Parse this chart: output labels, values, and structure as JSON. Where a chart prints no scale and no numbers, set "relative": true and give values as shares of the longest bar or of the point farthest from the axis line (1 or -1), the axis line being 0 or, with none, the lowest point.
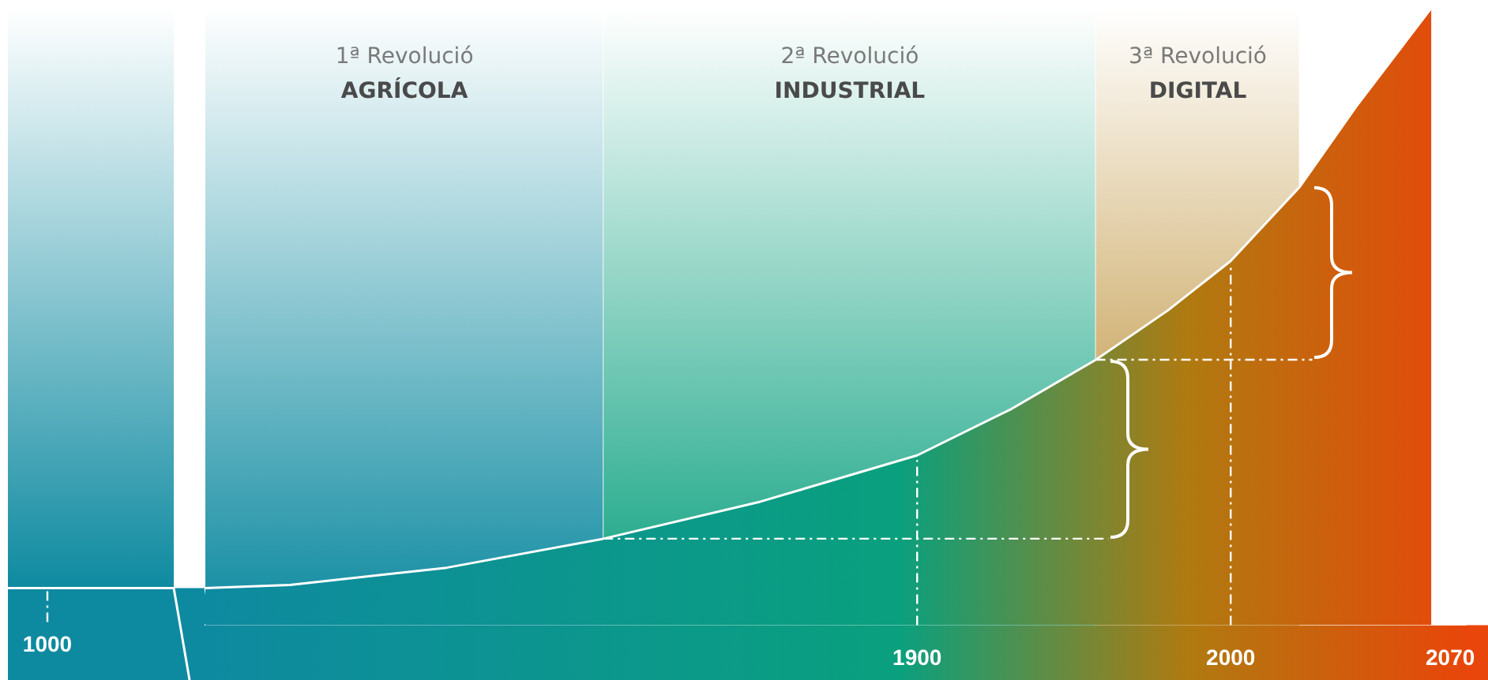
{
  "chart_data": {
    "type": "area",
    "relative": true,
    "x": [
      1673,
      1700,
      1750,
      1800,
      1850,
      1900,
      1930,
      1957,
      1980,
      2000,
      2022,
      2040,
      2064
    ],
    "xlim": [
      1673,
      2075
    ],
    "xticks": [
      1900,
      2000,
      2070
    ],
    "series": [
      {
        "color": "#ffffff",
        "values": [
          0.06,
          0.065,
          0.093,
          0.14,
          0.2,
          0.275,
          0.35,
          0.43,
          0.51,
          0.59,
          0.71,
          0.84,
          1.0
        ]
      }
    ],
    "bands": [
      {
        "axis": "x",
        "from": 1673,
        "to": 1800,
        "label": "1ª Revolució\nAGRÍCOLA",
        "color": "#0e8aa0"
      },
      {
        "axis": "x",
        "from": 1800,
        "to": 1957,
        "label": "2ª Revolució\nINDUSTRIAL",
        "color": "#0aa07e"
      },
      {
        "axis": "x",
        "from": 1957,
        "to": 2022,
        "label": "3ª Revolució\nDIGITAL",
        "color": "#b07a10"
      }
    ],
    "ref_lines": [
      {
        "axis": "x",
        "value": 1900,
        "color": "#ffffff",
        "line_style": "dashed"
      },
      {
        "axis": "x",
        "value": 2000,
        "color": "#ffffff",
        "line_style": "dashed"
      },
      {
        "axis": "x",
        "value": 2070,
        "color": "#ffffff",
        "line_style": "dashed"
      },
      {
        "axis": "y",
        "value": 0.14,
        "color": "#ffffff",
        "line_style": "dashed"
      },
      {
        "axis": "y",
        "value": 0.43,
        "color": "#ffffff",
        "line_style": "dashed"
      }
    ],
    "annotations": [
      "1000"
    ]
  }
}
